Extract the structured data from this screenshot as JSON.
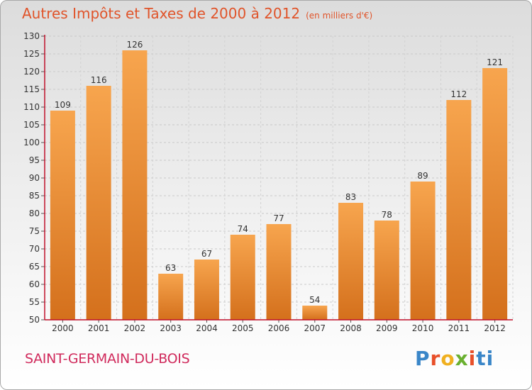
{
  "title": "Autres Impôts et Taxes de 2000 à 2012",
  "subtitle": "(en milliers d'€)",
  "commune": "SAINT-GERMAIN-DU-BOIS",
  "logo_text": "Proxiti",
  "colors": {
    "bar_light": "#f7a54e",
    "bar_dark": "#d4701c",
    "title": "#e0542a",
    "commune": "#d02a5c",
    "axis": "#c0102a"
  },
  "chart_data": {
    "type": "bar",
    "categories": [
      "2000",
      "2001",
      "2002",
      "2003",
      "2004",
      "2005",
      "2006",
      "2007",
      "2008",
      "2009",
      "2010",
      "2011",
      "2012"
    ],
    "values": [
      109,
      116,
      126,
      63,
      67,
      74,
      77,
      54,
      83,
      78,
      89,
      112,
      121
    ],
    "title": "Autres Impôts et Taxes de 2000 à 2012",
    "xlabel": "",
    "ylabel": "",
    "ylim": [
      50,
      130
    ],
    "yticks": [
      50,
      55,
      60,
      65,
      70,
      75,
      80,
      85,
      90,
      95,
      100,
      105,
      110,
      115,
      120,
      125,
      130
    ],
    "grid": true,
    "data_labels": true
  }
}
